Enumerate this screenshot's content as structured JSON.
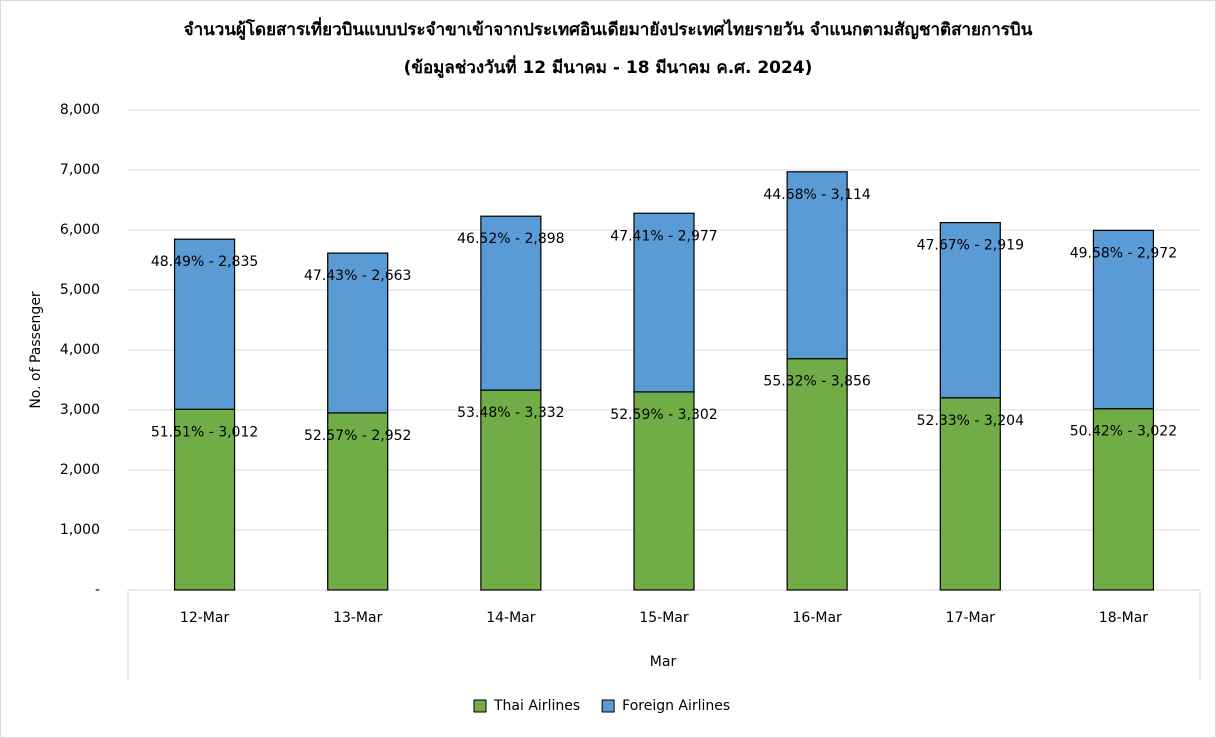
{
  "chart_data": {
    "type": "stacked_bar",
    "title": "จำนวนผู้โดยสารเที่ยวบินแบบประจำขาเข้าจากประเทศอินเดียมายังประเทศไทยรายวัน  จำแนกตามสัญชาติสายการบิน",
    "subtitle": "(ข้อมูลช่วงวันที่ 12 มีนาคม - 18 มีนาคม ค.ศ. 2024)",
    "x_label": "Mar",
    "y_label": "No. of Passenger",
    "categories": [
      "12-Mar",
      "13-Mar",
      "14-Mar",
      "15-Mar",
      "16-Mar",
      "17-Mar",
      "18-Mar"
    ],
    "series": [
      {
        "name": "Thai Airlines",
        "color": "#70ad47",
        "values": [
          3012,
          2952,
          3332,
          3302,
          3856,
          3204,
          3022
        ],
        "value_labels": [
          "51.51% -  3,012",
          "52.57% -  2,952",
          "53.48% -  3,332",
          "52.59% -  3,302",
          "55.32% -  3,856",
          "52.33% -  3,204",
          "50.42% -  3,022"
        ]
      },
      {
        "name": "Foreign Airlines",
        "color": "#5b9bd5",
        "values": [
          2835,
          2663,
          2898,
          2977,
          3114,
          2919,
          2972
        ],
        "value_labels": [
          "48.49% -  2,835",
          "47.43% -  2,663",
          "46.52% -  2,898",
          "47.41% -  2,977",
          "44.68% -  3,114",
          "47.67% -  2,919",
          "49.58% -  2,972"
        ]
      }
    ],
    "ylim": [
      0,
      8000
    ],
    "yticks": [
      {
        "value": 0,
        "label": "-"
      },
      {
        "value": 1000,
        "label": "1,000"
      },
      {
        "value": 2000,
        "label": "2,000"
      },
      {
        "value": 3000,
        "label": "3,000"
      },
      {
        "value": 4000,
        "label": "4,000"
      },
      {
        "value": 5000,
        "label": "5,000"
      },
      {
        "value": 6000,
        "label": "6,000"
      },
      {
        "value": 7000,
        "label": "7,000"
      },
      {
        "value": 8000,
        "label": "8,000"
      }
    ],
    "grid": true,
    "legend": "bottom"
  }
}
